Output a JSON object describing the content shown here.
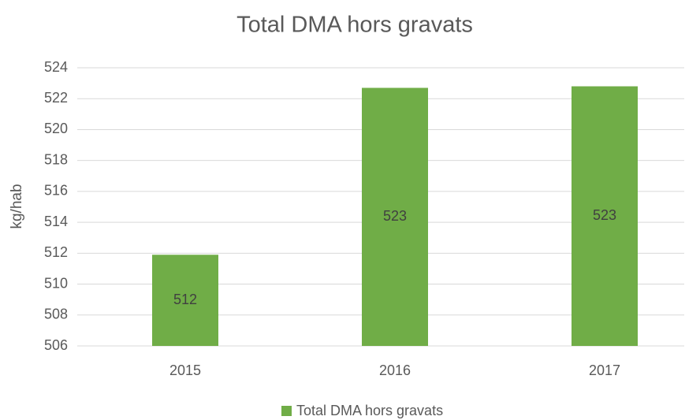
{
  "chart_data": {
    "type": "bar",
    "title": "Total DMA hors gravats",
    "y_label": "kg/hab",
    "categories": [
      "2015",
      "2016",
      "2017"
    ],
    "series": [
      {
        "name": "Total DMA hors gravats",
        "color": "#70ad47",
        "values": [
          511.9,
          522.7,
          522.8
        ],
        "value_labels": [
          "512",
          "523",
          "523"
        ]
      }
    ],
    "ylim": [
      506,
      524
    ],
    "yticks": [
      506,
      508,
      510,
      512,
      514,
      516,
      518,
      520,
      522,
      524
    ],
    "grid": true,
    "legend": "bottom"
  }
}
